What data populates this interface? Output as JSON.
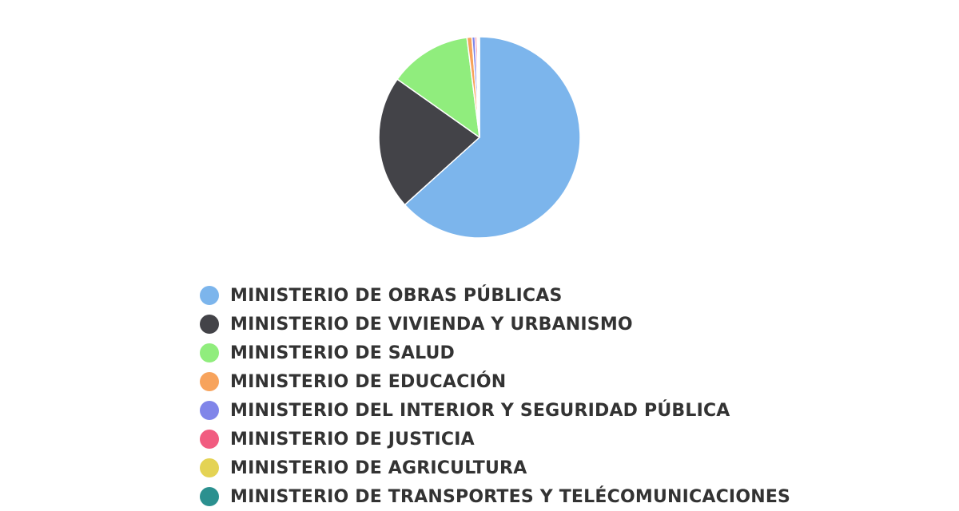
{
  "chart_data": {
    "type": "pie",
    "title": "",
    "legend_position": "bottom",
    "categories": [
      "MINISTERIO DE OBRAS PÚBLICAS",
      "MINISTERIO DE VIVIENDA Y URBANISMO",
      "MINISTERIO DE SALUD",
      "MINISTERIO DE EDUCACIÓN",
      "MINISTERIO DEL INTERIOR Y SEGURIDAD PÚBLICA",
      "MINISTERIO DE JUSTICIA",
      "MINISTERIO DE AGRICULTURA",
      "MINISTERIO DE TRANSPORTES Y TELÉCOMUNICACIONES"
    ],
    "values": [
      63.3,
      21.5,
      13.2,
      0.8,
      0.5,
      0.3,
      0.2,
      0.2
    ],
    "colors": [
      "#7cb5ec",
      "#434348",
      "#90ed7d",
      "#f7a35c",
      "#8085e9",
      "#f15c80",
      "#e4d354",
      "#2b908f"
    ]
  }
}
